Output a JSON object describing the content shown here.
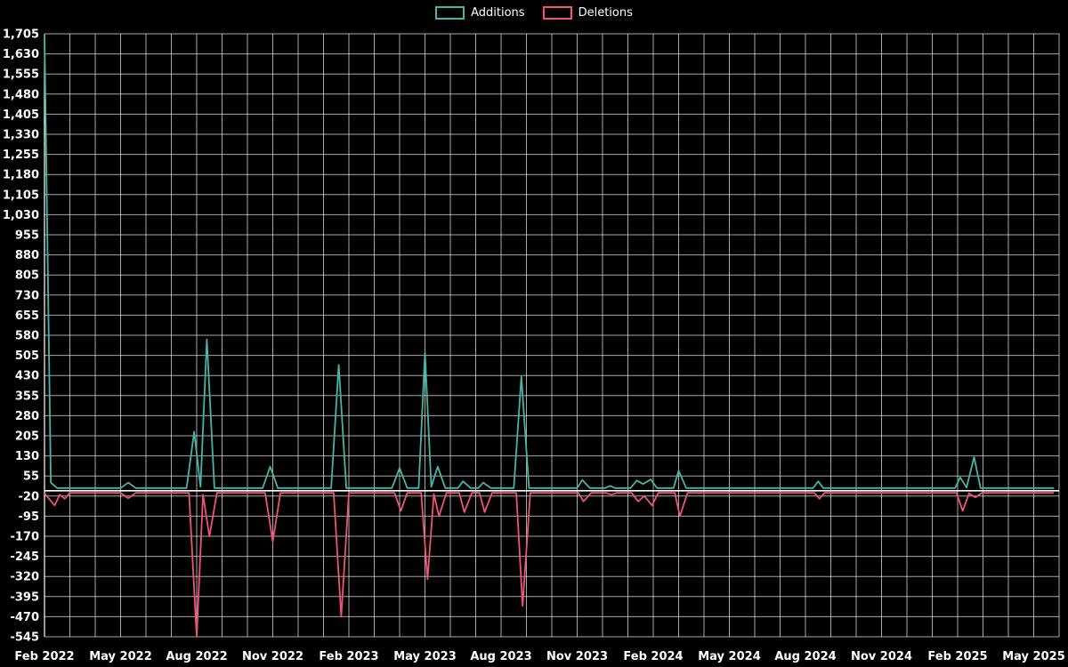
{
  "legend": {
    "items": [
      {
        "label": "Additions",
        "color": "#45b5a8"
      },
      {
        "label": "Deletions",
        "color": "#f0527a"
      }
    ]
  },
  "chart_data": {
    "type": "line",
    "title": "",
    "background": "#000000",
    "grid_color": "rgba(255,255,255,0.65)",
    "axis_line_color": "#ffffff",
    "zero_line_color": "#ffffff",
    "x_axis": {
      "unit": "months since Feb 2022",
      "range": [
        0,
        40
      ],
      "tick_positions": [
        0,
        3,
        6,
        9,
        12,
        15,
        18,
        21,
        24,
        27,
        30,
        33,
        36,
        39
      ],
      "tick_labels": [
        "Feb 2022",
        "May 2022",
        "Aug 2022",
        "Nov 2022",
        "Feb 2023",
        "May 2023",
        "Aug 2023",
        "Nov 2023",
        "Feb 2024",
        "May 2024",
        "Aug 2024",
        "Nov 2024",
        "Feb 2025",
        "May 2025"
      ],
      "gridline_step": 1
    },
    "y_axis": {
      "range": [
        -545,
        1705
      ],
      "tick_values": [
        1705,
        1630,
        1555,
        1480,
        1405,
        1330,
        1255,
        1180,
        1105,
        1030,
        955,
        880,
        805,
        730,
        655,
        580,
        505,
        430,
        355,
        280,
        205,
        130,
        55,
        -20,
        -95,
        -170,
        -245,
        -320,
        -395,
        -470,
        -545
      ],
      "tick_labels": [
        "1,705",
        "1,630",
        "1,555",
        "1,480",
        "1,405",
        "1,330",
        "1,255",
        "1,180",
        "1,105",
        "1,030",
        "955",
        "880",
        "805",
        "730",
        "655",
        "580",
        "505",
        "430",
        "355",
        "280",
        "205",
        "130",
        "55",
        "-20",
        "-95",
        "-170",
        "-245",
        "-320",
        "-395",
        "-470",
        "-545"
      ]
    },
    "series": [
      {
        "name": "Additions",
        "color": "#45b5a8",
        "points": [
          [
            0,
            1705
          ],
          [
            0.25,
            30
          ],
          [
            0.5,
            10
          ],
          [
            3.0,
            10
          ],
          [
            3.3,
            30
          ],
          [
            3.6,
            10
          ],
          [
            5.6,
            10
          ],
          [
            5.9,
            220
          ],
          [
            6.15,
            15
          ],
          [
            6.4,
            565
          ],
          [
            6.7,
            10
          ],
          [
            8.6,
            10
          ],
          [
            8.9,
            90
          ],
          [
            9.2,
            10
          ],
          [
            11.3,
            10
          ],
          [
            11.6,
            470
          ],
          [
            11.9,
            10
          ],
          [
            13.7,
            10
          ],
          [
            14.0,
            85
          ],
          [
            14.3,
            10
          ],
          [
            14.75,
            10
          ],
          [
            15.0,
            515
          ],
          [
            15.25,
            15
          ],
          [
            15.5,
            90
          ],
          [
            15.8,
            10
          ],
          [
            16.3,
            10
          ],
          [
            16.5,
            35
          ],
          [
            16.8,
            10
          ],
          [
            17.1,
            10
          ],
          [
            17.3,
            30
          ],
          [
            17.6,
            10
          ],
          [
            18.5,
            10
          ],
          [
            18.8,
            425
          ],
          [
            19.1,
            10
          ],
          [
            21.0,
            10
          ],
          [
            21.2,
            40
          ],
          [
            21.5,
            10
          ],
          [
            22.1,
            10
          ],
          [
            22.3,
            18
          ],
          [
            22.5,
            10
          ],
          [
            23.1,
            10
          ],
          [
            23.35,
            38
          ],
          [
            23.6,
            25
          ],
          [
            23.9,
            42
          ],
          [
            24.15,
            10
          ],
          [
            24.8,
            10
          ],
          [
            25.0,
            75
          ],
          [
            25.3,
            10
          ],
          [
            30.3,
            10
          ],
          [
            30.5,
            35
          ],
          [
            30.7,
            10
          ],
          [
            35.9,
            10
          ],
          [
            36.1,
            50
          ],
          [
            36.35,
            12
          ],
          [
            36.65,
            125
          ],
          [
            36.9,
            10
          ],
          [
            39.8,
            10
          ]
        ]
      },
      {
        "name": "Deletions",
        "color": "#f0527a",
        "points": [
          [
            0,
            -10
          ],
          [
            0.4,
            -55
          ],
          [
            0.6,
            -15
          ],
          [
            0.8,
            -30
          ],
          [
            1.0,
            -8
          ],
          [
            3.0,
            -8
          ],
          [
            3.3,
            -28
          ],
          [
            3.6,
            -8
          ],
          [
            5.7,
            -8
          ],
          [
            6.0,
            -545
          ],
          [
            6.25,
            -15
          ],
          [
            6.5,
            -170
          ],
          [
            6.8,
            -8
          ],
          [
            8.7,
            -8
          ],
          [
            9.0,
            -190
          ],
          [
            9.3,
            -8
          ],
          [
            11.4,
            -8
          ],
          [
            11.7,
            -470
          ],
          [
            12.0,
            -8
          ],
          [
            13.8,
            -8
          ],
          [
            14.05,
            -75
          ],
          [
            14.3,
            -8
          ],
          [
            14.85,
            -8
          ],
          [
            15.1,
            -330
          ],
          [
            15.35,
            -12
          ],
          [
            15.55,
            -95
          ],
          [
            15.85,
            -8
          ],
          [
            16.35,
            -8
          ],
          [
            16.55,
            -80
          ],
          [
            16.85,
            -8
          ],
          [
            17.15,
            -8
          ],
          [
            17.35,
            -80
          ],
          [
            17.65,
            -8
          ],
          [
            18.6,
            -8
          ],
          [
            18.85,
            -430
          ],
          [
            19.15,
            -8
          ],
          [
            21.05,
            -8
          ],
          [
            21.25,
            -40
          ],
          [
            21.55,
            -8
          ],
          [
            22.15,
            -8
          ],
          [
            22.35,
            -15
          ],
          [
            22.55,
            -8
          ],
          [
            23.15,
            -8
          ],
          [
            23.4,
            -40
          ],
          [
            23.65,
            -20
          ],
          [
            23.95,
            -55
          ],
          [
            24.2,
            -8
          ],
          [
            24.85,
            -8
          ],
          [
            25.05,
            -95
          ],
          [
            25.35,
            -8
          ],
          [
            30.35,
            -8
          ],
          [
            30.55,
            -30
          ],
          [
            30.75,
            -8
          ],
          [
            35.95,
            -8
          ],
          [
            36.2,
            -75
          ],
          [
            36.45,
            -10
          ],
          [
            36.7,
            -25
          ],
          [
            36.95,
            -8
          ],
          [
            39.8,
            -8
          ]
        ]
      }
    ]
  }
}
